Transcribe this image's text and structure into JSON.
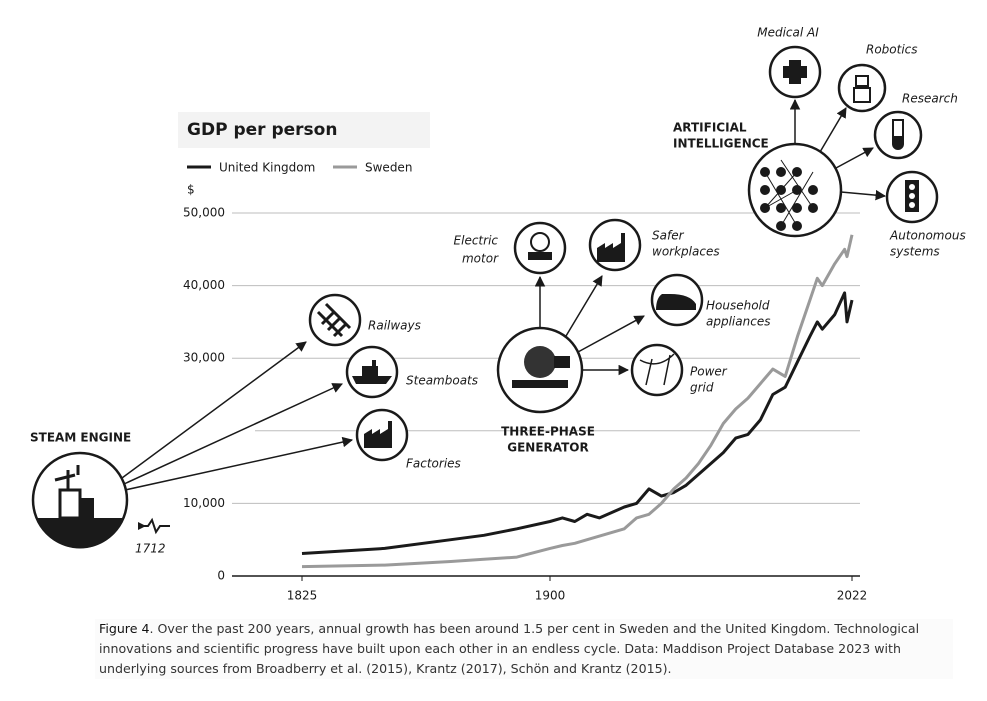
{
  "chart_data": {
    "type": "line",
    "title": "GDP per person",
    "y_unit": "$",
    "x": [
      1825,
      1850,
      1870,
      1880,
      1890,
      1900,
      1905,
      1910,
      1915,
      1920,
      1930,
      1935,
      1940,
      1945,
      1950,
      1955,
      1960,
      1965,
      1970,
      1975,
      1980,
      1985,
      1990,
      1995,
      2000,
      2005,
      2008,
      2010,
      2015,
      2019,
      2020,
      2022
    ],
    "series": [
      {
        "name": "United Kingdom",
        "color": "#1a1a1a",
        "values": [
          3100,
          3800,
          5000,
          5600,
          6500,
          7500,
          8000,
          7500,
          8500,
          8000,
          9500,
          10000,
          12000,
          11000,
          11500,
          12500,
          14000,
          15500,
          17000,
          19000,
          19500,
          21500,
          25000,
          26000,
          29500,
          33000,
          35000,
          34000,
          36000,
          39000,
          35000,
          38000
        ]
      },
      {
        "name": "Sweden",
        "color": "#9a9a9a",
        "values": [
          1300,
          1500,
          2000,
          2300,
          2600,
          3800,
          4200,
          4500,
          5000,
          5500,
          6500,
          8000,
          8500,
          10000,
          12000,
          13500,
          15500,
          18000,
          21000,
          23000,
          24500,
          26500,
          28500,
          27500,
          33000,
          38000,
          41000,
          40000,
          43000,
          45000,
          44000,
          47000
        ]
      }
    ],
    "xlim": [
      1825,
      2022
    ],
    "xticks": [
      1825,
      1900,
      2022
    ],
    "ylim": [
      0,
      50000
    ],
    "yticks": [
      0,
      {
        "value": 10000,
        "label": "10,000"
      },
      {
        "value": 20000,
        "label": null
      },
      {
        "value": 30000,
        "label": "30,000"
      },
      {
        "value": 40000,
        "label": "40,000"
      },
      {
        "value": 50000,
        "label": "50,000"
      }
    ],
    "grid": true,
    "annotations": {
      "steam_engine": {
        "title": "STEAM ENGINE",
        "year": "1712",
        "items": [
          "Railways",
          "Steamboats",
          "Factories"
        ]
      },
      "generator": {
        "title": [
          "THREE-PHASE",
          "GENERATOR"
        ],
        "items": [
          [
            "Electric",
            "motor"
          ],
          [
            "Safer",
            "workplaces"
          ],
          [
            "Household",
            "appliances"
          ],
          [
            "Power",
            "grid"
          ]
        ]
      },
      "ai": {
        "title": [
          "ARTIFICIAL",
          "INTELLIGENCE"
        ],
        "items": [
          [
            "Medical AI"
          ],
          [
            "Robotics"
          ],
          [
            "Research"
          ],
          [
            "Autonomous",
            "systems"
          ]
        ]
      }
    }
  },
  "caption": {
    "label": "Figure 4",
    "text": ". Over the past 200 years, annual growth has been around 1.5 per cent in Sweden and the United Kingdom. Technological innovations and scientific progress have built upon each other in an endless cycle. Data: Maddison Project Database 2023 with underlying sources from Broadberry et al. (2015), Krantz (2017), Schön and Krantz (2015)."
  }
}
